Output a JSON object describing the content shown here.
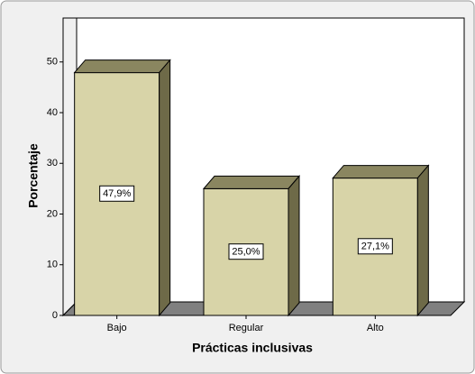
{
  "chart_data": {
    "type": "bar3d",
    "x_label": "Prácticas inclusivas",
    "y_label": "Porcentaje",
    "categories": [
      "Bajo",
      "Regular",
      "Alto"
    ],
    "values": [
      47.9,
      25.0,
      27.1
    ],
    "value_labels": [
      "47,9%",
      "25,0%",
      "27,1%"
    ],
    "color": "#d8d4a8",
    "ylim": [
      0,
      56
    ],
    "yticks": [
      0,
      10,
      20,
      30,
      40,
      50
    ]
  }
}
